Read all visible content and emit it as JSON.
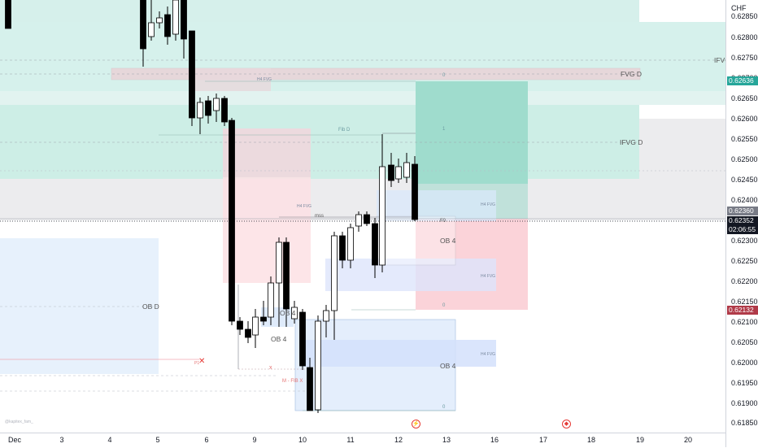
{
  "chart": {
    "currency": "CHF",
    "watermark": "@kapitex_fam_",
    "price_axis": [
      "0.62850",
      "0.62800",
      "0.62750",
      "0.62700",
      "0.62650",
      "0.62600",
      "0.62550",
      "0.62500",
      "0.62450",
      "0.62400",
      "0.62350",
      "0.62300",
      "0.62250",
      "0.62200",
      "0.62150",
      "0.62100",
      "0.62050",
      "0.62000",
      "0.61950",
      "0.61900",
      "0.61850"
    ],
    "time_axis": [
      "Dec",
      "3",
      "4",
      "5",
      "6",
      "9",
      "10",
      "11",
      "12",
      "13",
      "16",
      "17",
      "18",
      "19",
      "20"
    ],
    "tags": {
      "green_price": "0.62636",
      "gray_price": "0.62360",
      "current_price": "0.62352",
      "countdown": "02:06:55",
      "red_price": "0.62132"
    },
    "colors": {
      "green_tag": "#26a69a",
      "gray_tag": "#787b86",
      "current_tag": "#131722",
      "red_tag": "#b03a48",
      "bull_body": "#ffffff",
      "bear_body": "#000000",
      "fvg_zone": "#cdeee6",
      "ob_zone": "#dceefe",
      "premium_zone": "#fde0e4"
    },
    "annotations": {
      "ifvg_right": "IFVG",
      "fvg_d": "FVG D",
      "ifvg_d": "IFVG D",
      "ob_d": "OB D",
      "ob4_a": "OB 4",
      "ob4_b": "OB 4",
      "ob4_c": "OB 4",
      "ob4_d": "OB 4",
      "h4_fvg_a": "H4 FVG",
      "h4_fvg_b": "H4 FVG",
      "h4_fvg_c": "H4 FVG",
      "h4_fvg_d": "H4 FVG",
      "h4_fvg_e": "H4 FVG",
      "fib_d": "Fib D",
      "mss": "mss",
      "bos_x": "x",
      "m_fib_x": "M - FIB X",
      "fib_0_top": "0",
      "fib_1": "1",
      "fib_0_mid": "F0",
      "fib_0_lo": "0",
      "fib_0_bot": "0",
      "cross_label": "P1"
    }
  }
}
